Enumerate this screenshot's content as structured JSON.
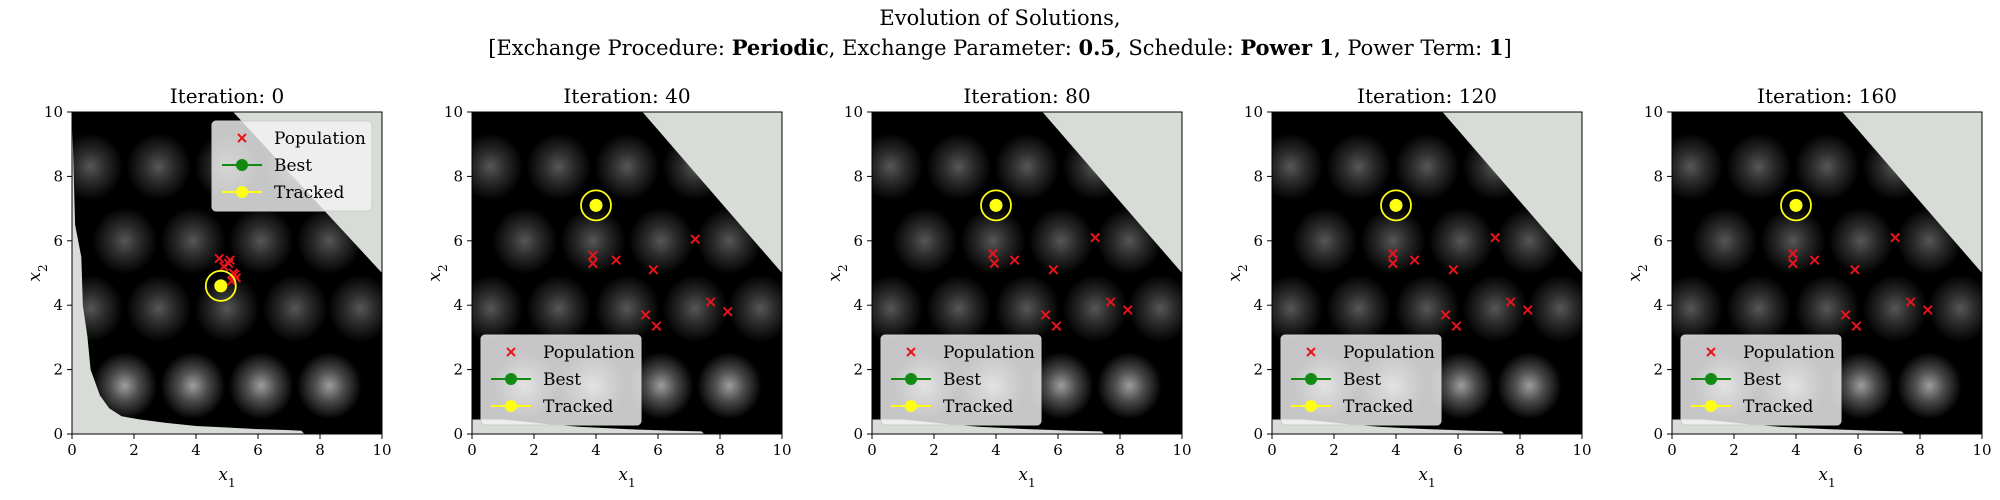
{
  "suptitle": {
    "line1": "Evolution of Solutions,",
    "line2_parts": [
      {
        "text": "[Exchange Procedure: ",
        "bold": false
      },
      {
        "text": "Periodic",
        "bold": true
      },
      {
        "text": ", Exchange Parameter: ",
        "bold": false
      },
      {
        "text": "0.5",
        "bold": true
      },
      {
        "text": ", Schedule: ",
        "bold": false
      },
      {
        "text": "Power 1",
        "bold": true
      },
      {
        "text": ", Power Term: ",
        "bold": false
      },
      {
        "text": "1",
        "bold": true
      },
      {
        "text": "]",
        "bold": false
      }
    ]
  },
  "colors": {
    "population": "#e8141c",
    "best": "#138a13",
    "tracked": "#ffff14",
    "infeasible": "#d7ddd6",
    "legend_bg": "#f2f2f2"
  },
  "legend": [
    "Population",
    "Best",
    "Tracked"
  ],
  "chart_data": [
    {
      "type": "scatter",
      "title": "Iteration: 0",
      "xlabel": "x1",
      "ylabel": "x2",
      "xlim": [
        0,
        10
      ],
      "ylim": [
        0,
        10
      ],
      "xticks": [
        "0",
        "2",
        "4",
        "6",
        "8",
        "10"
      ],
      "yticks": [
        "0",
        "2",
        "4",
        "6",
        "8",
        "10"
      ],
      "legend_position": "upper-right",
      "infeasible_region": "upper-right-and-lower-left",
      "series": [
        {
          "name": "Population",
          "x": [
            4.75,
            5.05,
            5.1,
            5.25,
            5.3,
            5.15,
            5.2,
            4.9
          ],
          "y": [
            5.45,
            5.3,
            5.4,
            4.95,
            4.85,
            4.75,
            5.0,
            5.2
          ]
        },
        {
          "name": "Tracked",
          "x": [
            4.8
          ],
          "y": [
            4.6
          ]
        }
      ]
    },
    {
      "type": "scatter",
      "title": "Iteration: 40",
      "xlabel": "x1",
      "ylabel": "x2",
      "xlim": [
        0,
        10
      ],
      "ylim": [
        0,
        10
      ],
      "xticks": [
        "0",
        "2",
        "4",
        "6",
        "8",
        "10"
      ],
      "yticks": [
        "0",
        "2",
        "4",
        "6",
        "8",
        "10"
      ],
      "legend_position": "lower-left",
      "infeasible_region": "upper-right",
      "series": [
        {
          "name": "Population",
          "x": [
            3.9,
            3.9,
            4.65,
            5.85,
            7.2,
            5.6,
            5.95,
            7.7,
            8.25
          ],
          "y": [
            5.55,
            5.3,
            5.4,
            5.1,
            6.05,
            3.7,
            3.35,
            4.1,
            3.8
          ]
        },
        {
          "name": "Tracked",
          "x": [
            4.0
          ],
          "y": [
            7.1
          ]
        }
      ]
    },
    {
      "type": "scatter",
      "title": "Iteration: 80",
      "xlabel": "x1",
      "ylabel": "x2",
      "xlim": [
        0,
        10
      ],
      "ylim": [
        0,
        10
      ],
      "xticks": [
        "0",
        "2",
        "4",
        "6",
        "8",
        "10"
      ],
      "yticks": [
        "0",
        "2",
        "4",
        "6",
        "8",
        "10"
      ],
      "legend_position": "lower-left",
      "infeasible_region": "upper-right",
      "series": [
        {
          "name": "Population",
          "x": [
            3.9,
            3.95,
            4.6,
            5.85,
            7.2,
            5.6,
            5.95,
            7.7,
            8.25
          ],
          "y": [
            5.6,
            5.3,
            5.4,
            5.1,
            6.1,
            3.7,
            3.35,
            4.1,
            3.85
          ]
        },
        {
          "name": "Tracked",
          "x": [
            4.0
          ],
          "y": [
            7.1
          ]
        }
      ]
    },
    {
      "type": "scatter",
      "title": "Iteration: 120",
      "xlabel": "x1",
      "ylabel": "x2",
      "xlim": [
        0,
        10
      ],
      "ylim": [
        0,
        10
      ],
      "xticks": [
        "0",
        "2",
        "4",
        "6",
        "8",
        "10"
      ],
      "yticks": [
        "0",
        "2",
        "4",
        "6",
        "8",
        "10"
      ],
      "legend_position": "lower-left",
      "infeasible_region": "upper-right",
      "series": [
        {
          "name": "Population",
          "x": [
            3.9,
            3.9,
            4.6,
            5.85,
            7.2,
            5.6,
            5.95,
            7.7,
            8.25
          ],
          "y": [
            5.6,
            5.3,
            5.4,
            5.1,
            6.1,
            3.7,
            3.35,
            4.1,
            3.85
          ]
        },
        {
          "name": "Tracked",
          "x": [
            4.0
          ],
          "y": [
            7.1
          ]
        }
      ]
    },
    {
      "type": "scatter",
      "title": "Iteration: 160",
      "xlabel": "x1",
      "ylabel": "x2",
      "xlim": [
        0,
        10
      ],
      "ylim": [
        0,
        10
      ],
      "xticks": [
        "0",
        "2",
        "4",
        "6",
        "8",
        "10"
      ],
      "yticks": [
        "0",
        "2",
        "4",
        "6",
        "8",
        "10"
      ],
      "legend_position": "lower-left",
      "infeasible_region": "upper-right",
      "series": [
        {
          "name": "Population",
          "x": [
            3.9,
            3.9,
            4.6,
            5.9,
            7.2,
            5.6,
            5.95,
            7.7,
            8.25
          ],
          "y": [
            5.6,
            5.3,
            5.4,
            5.1,
            6.1,
            3.7,
            3.35,
            4.1,
            3.85
          ]
        },
        {
          "name": "Tracked",
          "x": [
            4.0
          ],
          "y": [
            7.1
          ]
        }
      ]
    }
  ]
}
